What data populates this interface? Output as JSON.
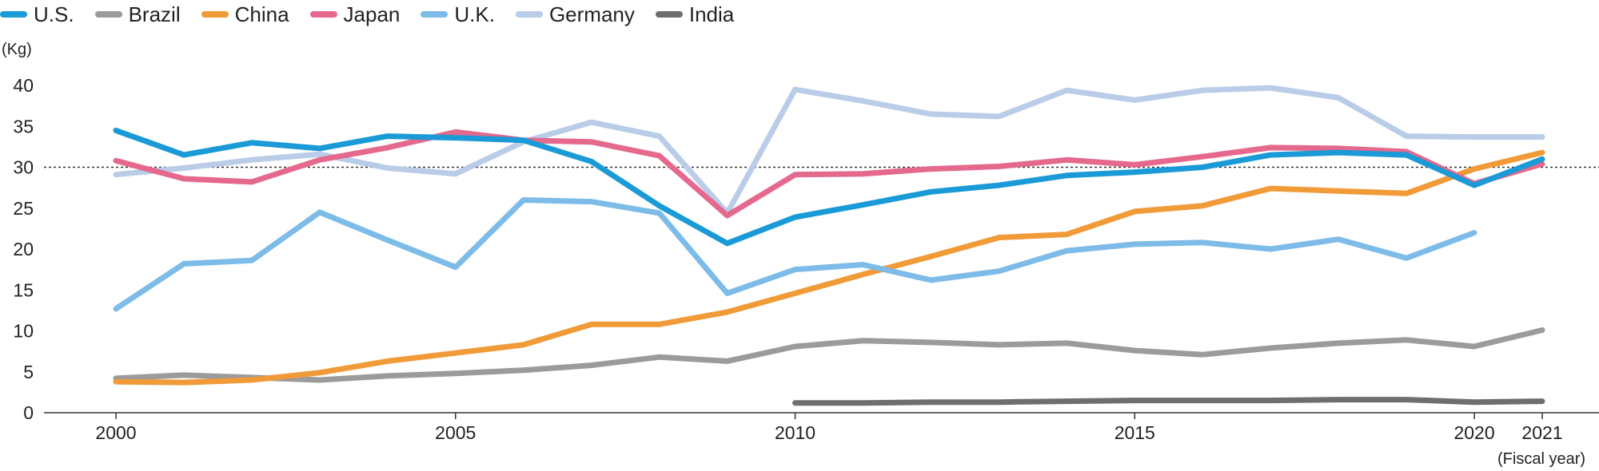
{
  "chart_data": {
    "type": "line",
    "ylabel": "(Kg)",
    "xlabel": "(Fiscal year)",
    "ylim": [
      0,
      40
    ],
    "xlim": [
      2000,
      2021
    ],
    "yticks": [
      "0",
      "5",
      "10",
      "15",
      "20",
      "25",
      "30",
      "35",
      "40"
    ],
    "xticks": [
      "2000",
      "2005",
      "2010",
      "2015",
      "2020",
      "2021"
    ],
    "reference_line": 30,
    "grid": false,
    "legend_position": "top-left",
    "series": [
      {
        "name": "U.S.",
        "color": "#1a9ad6",
        "points": [
          [
            2000,
            34.5
          ],
          [
            2001,
            31.5
          ],
          [
            2002,
            33
          ],
          [
            2003,
            32.3
          ],
          [
            2004,
            33.8
          ],
          [
            2005,
            33.6
          ],
          [
            2006,
            33.3
          ],
          [
            2007,
            30.7
          ],
          [
            2008,
            25.3
          ],
          [
            2009,
            20.7
          ],
          [
            2010,
            23.9
          ],
          [
            2011,
            25.4
          ],
          [
            2012,
            27
          ],
          [
            2013,
            27.8
          ],
          [
            2014,
            29
          ],
          [
            2015,
            29.4
          ],
          [
            2016,
            30
          ],
          [
            2017,
            31.5
          ],
          [
            2018,
            31.8
          ],
          [
            2019,
            31.5
          ],
          [
            2020,
            27.8
          ],
          [
            2021,
            31
          ]
        ]
      },
      {
        "name": "Brazil",
        "color": "#9b9b9b",
        "points": [
          [
            2000,
            4.2
          ],
          [
            2001,
            4.6
          ],
          [
            2002,
            4.3
          ],
          [
            2003,
            4
          ],
          [
            2004,
            4.5
          ],
          [
            2005,
            4.8
          ],
          [
            2006,
            5.2
          ],
          [
            2007,
            5.8
          ],
          [
            2008,
            6.8
          ],
          [
            2009,
            6.3
          ],
          [
            2010,
            8.1
          ],
          [
            2011,
            8.8
          ],
          [
            2012,
            8.6
          ],
          [
            2013,
            8.3
          ],
          [
            2014,
            8.5
          ],
          [
            2015,
            7.6
          ],
          [
            2016,
            7.1
          ],
          [
            2017,
            7.9
          ],
          [
            2018,
            8.5
          ],
          [
            2019,
            8.9
          ],
          [
            2020,
            8.1
          ],
          [
            2021,
            10.1
          ]
        ]
      },
      {
        "name": "China",
        "color": "#f19a38",
        "points": [
          [
            2000,
            3.8
          ],
          [
            2001,
            3.7
          ],
          [
            2002,
            4
          ],
          [
            2003,
            4.9
          ],
          [
            2004,
            6.3
          ],
          [
            2005,
            7.3
          ],
          [
            2006,
            8.3
          ],
          [
            2007,
            10.8
          ],
          [
            2008,
            10.8
          ],
          [
            2009,
            12.3
          ],
          [
            2010,
            14.6
          ],
          [
            2011,
            16.9
          ],
          [
            2012,
            19.1
          ],
          [
            2013,
            21.4
          ],
          [
            2014,
            21.8
          ],
          [
            2015,
            24.6
          ],
          [
            2016,
            25.3
          ],
          [
            2017,
            27.4
          ],
          [
            2018,
            27.1
          ],
          [
            2019,
            26.8
          ],
          [
            2020,
            29.8
          ],
          [
            2021,
            31.8
          ]
        ]
      },
      {
        "name": "Japan",
        "color": "#e5688d",
        "points": [
          [
            2000,
            30.8
          ],
          [
            2001,
            28.6
          ],
          [
            2002,
            28.2
          ],
          [
            2003,
            30.9
          ],
          [
            2004,
            32.4
          ],
          [
            2005,
            34.3
          ],
          [
            2006,
            33.3
          ],
          [
            2007,
            33.1
          ],
          [
            2008,
            31.4
          ],
          [
            2009,
            24.1
          ],
          [
            2010,
            29.1
          ],
          [
            2011,
            29.2
          ],
          [
            2012,
            29.8
          ],
          [
            2013,
            30.1
          ],
          [
            2014,
            30.9
          ],
          [
            2015,
            30.3
          ],
          [
            2016,
            31.3
          ],
          [
            2017,
            32.4
          ],
          [
            2018,
            32.3
          ],
          [
            2019,
            31.9
          ],
          [
            2020,
            28
          ],
          [
            2021,
            30.4
          ]
        ]
      },
      {
        "name": "U.K.",
        "color": "#7dbbe8",
        "points": [
          [
            2000,
            12.7
          ],
          [
            2001,
            18.2
          ],
          [
            2002,
            18.6
          ],
          [
            2003,
            24.5
          ],
          [
            2004,
            21.1
          ],
          [
            2005,
            17.8
          ],
          [
            2006,
            26
          ],
          [
            2007,
            25.8
          ],
          [
            2008,
            24.4
          ],
          [
            2009,
            14.6
          ],
          [
            2010,
            17.5
          ],
          [
            2011,
            18.1
          ],
          [
            2012,
            16.2
          ],
          [
            2013,
            17.3
          ],
          [
            2014,
            19.8
          ],
          [
            2015,
            20.6
          ],
          [
            2016,
            20.8
          ],
          [
            2017,
            20
          ],
          [
            2018,
            21.2
          ],
          [
            2019,
            18.9
          ],
          [
            2020,
            22
          ]
        ]
      },
      {
        "name": "Germany",
        "color": "#b9cce8",
        "points": [
          [
            2000,
            29.1
          ],
          [
            2001,
            29.9
          ],
          [
            2002,
            30.9
          ],
          [
            2003,
            31.6
          ],
          [
            2004,
            29.9
          ],
          [
            2005,
            29.2
          ],
          [
            2006,
            33.1
          ],
          [
            2007,
            35.5
          ],
          [
            2008,
            33.8
          ],
          [
            2009,
            24.4
          ],
          [
            2010,
            39.5
          ],
          [
            2011,
            38.1
          ],
          [
            2012,
            36.5
          ],
          [
            2013,
            36.2
          ],
          [
            2014,
            39.4
          ],
          [
            2015,
            38.2
          ],
          [
            2016,
            39.4
          ],
          [
            2017,
            39.7
          ],
          [
            2018,
            38.5
          ],
          [
            2019,
            33.8
          ],
          [
            2020,
            33.7
          ],
          [
            2021,
            33.7
          ]
        ]
      },
      {
        "name": "India",
        "color": "#6e6e6e",
        "points": [
          [
            2010,
            1.2
          ],
          [
            2011,
            1.2
          ],
          [
            2012,
            1.3
          ],
          [
            2013,
            1.3
          ],
          [
            2014,
            1.4
          ],
          [
            2015,
            1.5
          ],
          [
            2016,
            1.5
          ],
          [
            2017,
            1.5
          ],
          [
            2018,
            1.6
          ],
          [
            2019,
            1.6
          ],
          [
            2020,
            1.3
          ],
          [
            2021,
            1.4
          ]
        ]
      }
    ]
  }
}
